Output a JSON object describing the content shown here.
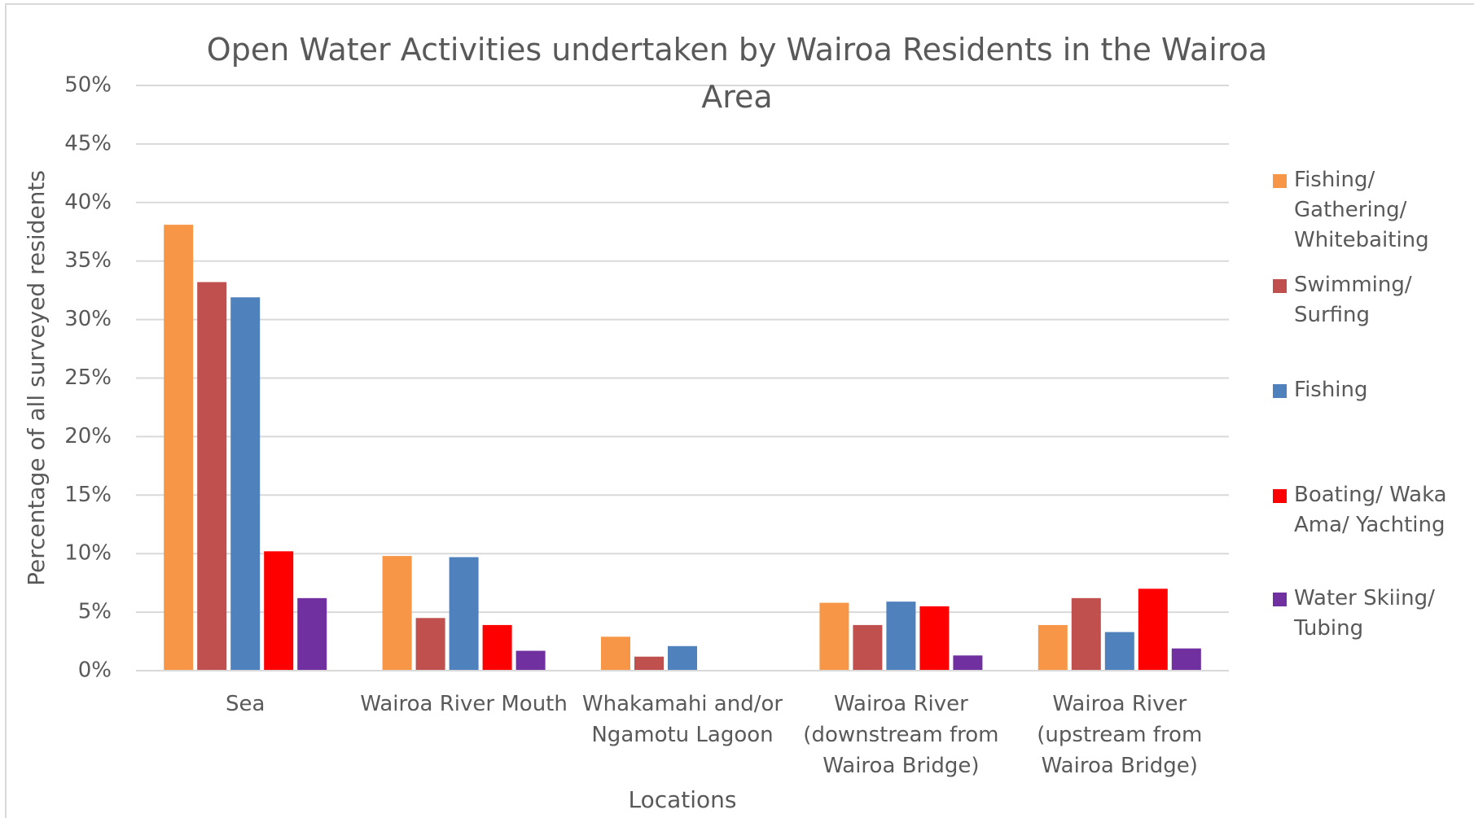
{
  "chart_data": {
    "type": "bar",
    "title": "Open Water Activities undertaken by Wairoa Residents in the Wairoa Area",
    "x_label": "Locations",
    "y_label": "Percentage of all surveyed residents",
    "categories": [
      "Sea",
      "Wairoa River Mouth",
      "Whakamahi and/or Ngamotu Lagoon",
      "Wairoa River (downstream from Wairoa Bridge)",
      "Wairoa River (upstream from Wairoa Bridge)"
    ],
    "series": [
      {
        "name": "Fishing/ Gathering/ Whitebaiting",
        "color": "#f79646",
        "values": [
          38.1,
          9.8,
          2.9,
          5.8,
          3.9
        ]
      },
      {
        "name": "Swimming/ Surfing",
        "color": "#c0504d",
        "values": [
          33.2,
          4.5,
          1.2,
          3.9,
          6.2
        ]
      },
      {
        "name": "Fishing",
        "color": "#4f81bd",
        "values": [
          31.9,
          9.7,
          2.1,
          5.9,
          3.3
        ]
      },
      {
        "name": "Boating/ Waka Ama/ Yachting",
        "color": "#ff0000",
        "values": [
          10.2,
          3.9,
          0,
          5.5,
          7.0
        ]
      },
      {
        "name": "Water Skiing/ Tubing",
        "color": "#7030a0",
        "values": [
          6.2,
          1.7,
          0,
          1.3,
          1.9
        ]
      }
    ],
    "ylim": [
      0,
      50
    ],
    "yticks": [
      {
        "value": 0,
        "label": "0%"
      },
      {
        "value": 5,
        "label": "5%"
      },
      {
        "value": 10,
        "label": "10%"
      },
      {
        "value": 15,
        "label": "15%"
      },
      {
        "value": 20,
        "label": "20%"
      },
      {
        "value": 25,
        "label": "25%"
      },
      {
        "value": 30,
        "label": "30%"
      },
      {
        "value": 35,
        "label": "35%"
      },
      {
        "value": 40,
        "label": "40%"
      },
      {
        "value": 45,
        "label": "45%"
      },
      {
        "value": 50,
        "label": "50%"
      }
    ],
    "grid": true,
    "legend": "right"
  }
}
